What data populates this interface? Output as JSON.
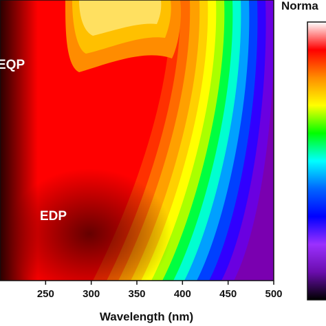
{
  "chart_data": {
    "type": "heatmap",
    "xlabel": "Wavelength (nm)",
    "ylabel": "",
    "xlim": [
      200,
      500
    ],
    "x_ticks": [
      "250",
      "300",
      "350",
      "400",
      "450",
      "500"
    ],
    "annotations": [
      "EQP",
      "EDP"
    ],
    "colorbar": {
      "label": "Norma",
      "colors": [
        "#ffffff",
        "#ff0000",
        "#ff8c00",
        "#ffff00",
        "#00ff00",
        "#00ffff",
        "#0066ff",
        "#0000ff",
        "#9b30ff",
        "#6a0dad",
        "#000000"
      ]
    },
    "heatmap_colors": [
      "#2a0000",
      "#8b0000",
      "#ff0000",
      "#ff5a00",
      "#ffa000",
      "#ffff00",
      "#66ff00",
      "#00ffff",
      "#0050ff",
      "#6a00ff",
      "#7a00b0"
    ]
  }
}
